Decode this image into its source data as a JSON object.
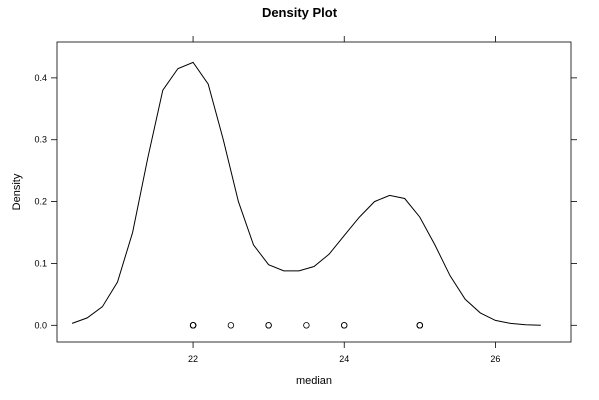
{
  "chart_data": {
    "type": "line",
    "title": "Density Plot",
    "xlabel": "median",
    "ylabel": "Density",
    "xlim": [
      20.2,
      27.0
    ],
    "ylim": [
      -0.027,
      0.458
    ],
    "x_ticks": [
      22,
      24,
      26
    ],
    "y_ticks": [
      0.0,
      0.1,
      0.2,
      0.3,
      0.4
    ],
    "x_tick_labels": [
      "22",
      "24",
      "26"
    ],
    "y_tick_labels": [
      "0.0",
      "0.1",
      "0.2",
      "0.3",
      "0.4"
    ],
    "grid": false,
    "series": [
      {
        "x": [
          20.4,
          20.6,
          20.8,
          21.0,
          21.2,
          21.4,
          21.6,
          21.8,
          22.0,
          22.2,
          22.4,
          22.6,
          22.8,
          23.0,
          23.2,
          23.4,
          23.6,
          23.8,
          24.0,
          24.2,
          24.4,
          24.6,
          24.8,
          25.0,
          25.2,
          25.4,
          25.6,
          25.8,
          26.0,
          26.2,
          26.4,
          26.6
        ],
        "y": [
          0.003,
          0.012,
          0.03,
          0.07,
          0.15,
          0.27,
          0.38,
          0.415,
          0.425,
          0.39,
          0.3,
          0.2,
          0.13,
          0.098,
          0.088,
          0.088,
          0.095,
          0.115,
          0.145,
          0.175,
          0.2,
          0.21,
          0.205,
          0.175,
          0.13,
          0.08,
          0.042,
          0.02,
          0.008,
          0.003,
          0.001,
          0.0
        ]
      }
    ],
    "rug_points": [
      {
        "x": 22.0,
        "y": 0.0
      },
      {
        "x": 22.0,
        "y": 0.0
      },
      {
        "x": 22.0,
        "y": 0.0
      },
      {
        "x": 22.0,
        "y": 0.0
      },
      {
        "x": 22.0,
        "y": 0.0
      },
      {
        "x": 22.5,
        "y": 0.0
      },
      {
        "x": 23.0,
        "y": 0.0
      },
      {
        "x": 23.0,
        "y": 0.0
      },
      {
        "x": 23.5,
        "y": 0.0
      },
      {
        "x": 24.0,
        "y": 0.0
      },
      {
        "x": 24.0,
        "y": 0.0
      },
      {
        "x": 25.0,
        "y": 0.0
      },
      {
        "x": 25.0,
        "y": 0.0
      },
      {
        "x": 25.0,
        "y": 0.0
      },
      {
        "x": 25.0,
        "y": 0.0
      }
    ]
  }
}
